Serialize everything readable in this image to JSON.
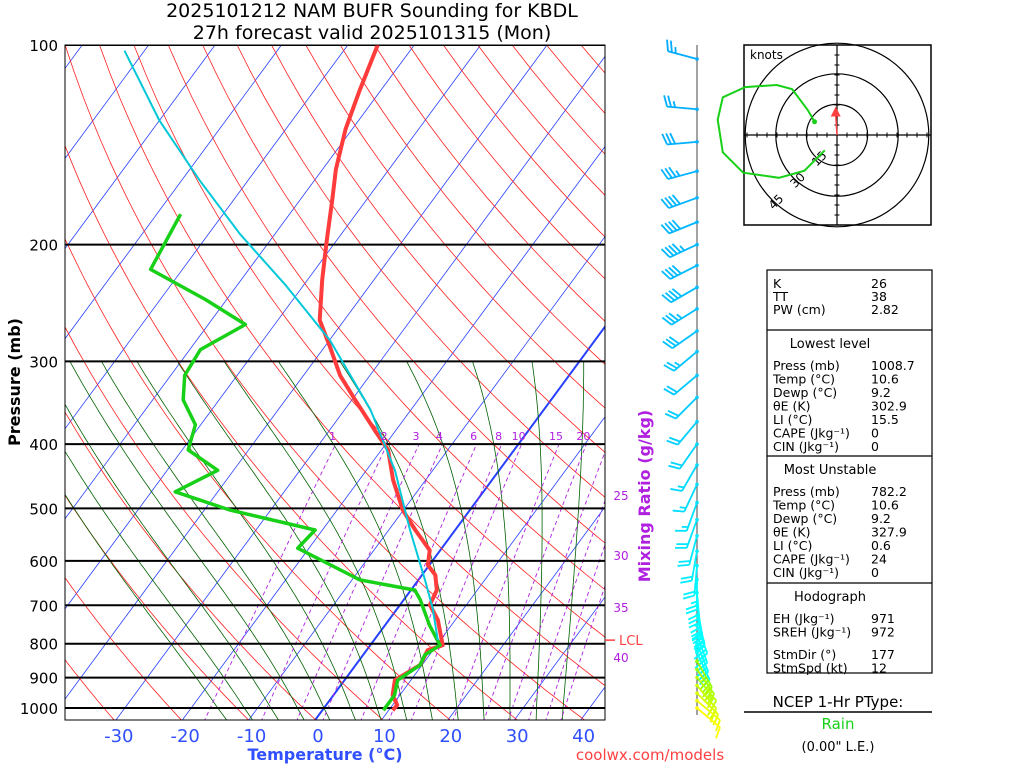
{
  "title": {
    "line1": "2025101212 NAM BUFR Sounding for KBDL",
    "line2": "27h forecast valid 2025101315 (Mon)"
  },
  "footer": {
    "site": "coolwx.com/models"
  },
  "colors": {
    "temperature": "#ff3c3c",
    "dewpoint": "#18d018",
    "parcel": "#00c8d8",
    "isotherm": "#2840ff",
    "dry_adiabat": "#ff2020",
    "moist_adiabat": "#006000",
    "mixing_ratio": "#b020e0",
    "axis_blue": "#3050ff"
  },
  "chart_data": {
    "type": "line",
    "title": "2025101212 NAM BUFR Sounding for KBDL",
    "xlabel": "Temperature (°C)",
    "ylabel": "Pressure (mb)",
    "y2label": "Mixing Ratio (g/kg)",
    "ylim": [
      1050,
      100
    ],
    "xlim_at_1000mb": [
      -40,
      42
    ],
    "pressure_ticks": [
      100,
      200,
      300,
      400,
      500,
      600,
      700,
      800,
      900,
      1000
    ],
    "temperature_ticks": [
      -30,
      -20,
      -10,
      0,
      10,
      20,
      30,
      40
    ],
    "mixing_ratio_lines": [
      1,
      2,
      3,
      4,
      6,
      8,
      10,
      15,
      20,
      25,
      30,
      35,
      40
    ],
    "lcl_label": "LCL",
    "lcl_pressure": 790,
    "series": [
      {
        "name": "Temperature",
        "points": [
          [
            1008,
            10.6
          ],
          [
            990,
            10.7
          ],
          [
            956,
            8.9
          ],
          [
            908,
            7.6
          ],
          [
            861,
            9.7
          ],
          [
            818,
            9.2
          ],
          [
            804,
            10.9
          ],
          [
            737,
            7.4
          ],
          [
            699,
            4.5
          ],
          [
            664,
            3.9
          ],
          [
            630,
            2.0
          ],
          [
            609,
            -0.2
          ],
          [
            578,
            -1.6
          ],
          [
            539,
            -6.0
          ],
          [
            503,
            -10.1
          ],
          [
            453,
            -14.9
          ],
          [
            408,
            -19.0
          ],
          [
            381,
            -23.2
          ],
          [
            343,
            -29.5
          ],
          [
            315,
            -34.5
          ],
          [
            284,
            -39.4
          ],
          [
            260,
            -43.7
          ],
          [
            226,
            -47.8
          ],
          [
            197,
            -51.5
          ],
          [
            171,
            -55.2
          ],
          [
            154,
            -58.0
          ],
          [
            134,
            -61.0
          ],
          [
            117,
            -63.2
          ],
          [
            100,
            -65.5
          ]
        ]
      },
      {
        "name": "Dewpoint",
        "points": [
          [
            1008,
            9.2
          ],
          [
            956,
            9.2
          ],
          [
            908,
            8.0
          ],
          [
            861,
            9.7
          ],
          [
            832,
            9.3
          ],
          [
            804,
            10.5
          ],
          [
            750,
            6.7
          ],
          [
            687,
            2.5
          ],
          [
            664,
            0.6
          ],
          [
            641,
            -8.8
          ],
          [
            630,
            -10.8
          ],
          [
            574,
            -21.7
          ],
          [
            539,
            -21.1
          ],
          [
            503,
            -36.1
          ],
          [
            472,
            -46.4
          ],
          [
            438,
            -42.4
          ],
          [
            408,
            -49.1
          ],
          [
            374,
            -50.8
          ],
          [
            343,
            -55.4
          ],
          [
            315,
            -57.9
          ],
          [
            288,
            -58.4
          ],
          [
            264,
            -54.4
          ],
          [
            242,
            -63.2
          ],
          [
            218,
            -74.8
          ],
          [
            180,
            -76.4
          ]
        ]
      },
      {
        "name": "Parcel",
        "points": [
          [
            790,
            9.6
          ],
          [
            709,
            5.4
          ],
          [
            641,
            1.0
          ],
          [
            539,
            -6.8
          ],
          [
            438,
            -15.7
          ],
          [
            355,
            -26.1
          ],
          [
            279,
            -39.9
          ],
          [
            230,
            -52.8
          ],
          [
            193,
            -65.2
          ],
          [
            160,
            -77.3
          ],
          [
            130,
            -90.0
          ],
          [
            102,
            -103.0
          ]
        ]
      }
    ],
    "winds": [
      {
        "p": 105,
        "dir": 285,
        "spd": 25
      },
      {
        "p": 125,
        "dir": 275,
        "spd": 25
      },
      {
        "p": 140,
        "dir": 265,
        "spd": 30
      },
      {
        "p": 155,
        "dir": 255,
        "spd": 35
      },
      {
        "p": 170,
        "dir": 250,
        "spd": 40
      },
      {
        "p": 185,
        "dir": 248,
        "spd": 40
      },
      {
        "p": 200,
        "dir": 245,
        "spd": 45
      },
      {
        "p": 215,
        "dir": 243,
        "spd": 40
      },
      {
        "p": 232,
        "dir": 240,
        "spd": 40
      },
      {
        "p": 250,
        "dir": 238,
        "spd": 35
      },
      {
        "p": 270,
        "dir": 235,
        "spd": 30
      },
      {
        "p": 290,
        "dir": 230,
        "spd": 25
      },
      {
        "p": 315,
        "dir": 230,
        "spd": 20
      },
      {
        "p": 340,
        "dir": 225,
        "spd": 20
      },
      {
        "p": 370,
        "dir": 220,
        "spd": 20
      },
      {
        "p": 400,
        "dir": 215,
        "spd": 20
      },
      {
        "p": 430,
        "dir": 210,
        "spd": 15
      },
      {
        "p": 460,
        "dir": 205,
        "spd": 15
      },
      {
        "p": 490,
        "dir": 200,
        "spd": 15
      },
      {
        "p": 520,
        "dir": 200,
        "spd": 20
      },
      {
        "p": 550,
        "dir": 195,
        "spd": 20
      },
      {
        "p": 580,
        "dir": 190,
        "spd": 20
      },
      {
        "p": 610,
        "dir": 185,
        "spd": 20
      },
      {
        "p": 640,
        "dir": 180,
        "spd": 25
      },
      {
        "p": 670,
        "dir": 175,
        "spd": 30
      },
      {
        "p": 700,
        "dir": 170,
        "spd": 35
      },
      {
        "p": 725,
        "dir": 165,
        "spd": 40
      },
      {
        "p": 750,
        "dir": 160,
        "spd": 45
      },
      {
        "p": 775,
        "dir": 160,
        "spd": 45
      },
      {
        "p": 800,
        "dir": 158,
        "spd": 40
      },
      {
        "p": 825,
        "dir": 155,
        "spd": 40
      },
      {
        "p": 850,
        "dir": 150,
        "spd": 35
      },
      {
        "p": 875,
        "dir": 145,
        "spd": 30
      },
      {
        "p": 900,
        "dir": 140,
        "spd": 25
      },
      {
        "p": 925,
        "dir": 140,
        "spd": 25
      },
      {
        "p": 950,
        "dir": 135,
        "spd": 20
      },
      {
        "p": 975,
        "dir": 130,
        "spd": 15
      },
      {
        "p": 1000,
        "dir": 130,
        "spd": 10
      }
    ],
    "hodograph": {
      "units_label": "knots",
      "rings": [
        15,
        30,
        45
      ],
      "ring_labels": [
        "15",
        "30",
        "45"
      ],
      "uv": [
        [
          -11,
          6.5
        ],
        [
          -14.5,
          12.5
        ],
        [
          -22,
          22.5
        ],
        [
          -29.5,
          24.5
        ],
        [
          -45,
          23.5
        ],
        [
          -56,
          18.5
        ],
        [
          -58.5,
          7.5
        ],
        [
          -56,
          -8.5
        ],
        [
          -46,
          -18.5
        ],
        [
          -28.5,
          -21
        ],
        [
          -16,
          -17.5
        ],
        [
          -6,
          -7.5
        ]
      ],
      "storm_motion": {
        "dir": 177,
        "spd": 12
      }
    }
  },
  "indices": {
    "top": [
      {
        "label": "K",
        "value": "26"
      },
      {
        "label": "TT",
        "value": "38"
      },
      {
        "label": "PW (cm)",
        "value": "2.82"
      }
    ],
    "lowest": {
      "heading": "Lowest level",
      "rows": [
        {
          "label": "Press (mb)",
          "value": "1008.7"
        },
        {
          "label": "Temp (°C)",
          "value": "10.6"
        },
        {
          "label": "Dewp (°C)",
          "value": "9.2"
        },
        {
          "label": "θE (K)",
          "value": "302.9"
        },
        {
          "label": "LI (°C)",
          "value": "15.5"
        },
        {
          "label": "CAPE (Jkg⁻¹)",
          "value": "0"
        },
        {
          "label": "CIN (Jkg⁻¹)",
          "value": "0"
        }
      ]
    },
    "unstable": {
      "heading": "Most Unstable",
      "rows": [
        {
          "label": "Press (mb)",
          "value": "782.2"
        },
        {
          "label": "Temp (°C)",
          "value": "10.6"
        },
        {
          "label": "Dewp (°C)",
          "value": "9.2"
        },
        {
          "label": "θE (K)",
          "value": "327.9"
        },
        {
          "label": "LI (°C)",
          "value": "0.6"
        },
        {
          "label": "CAPE (Jkg⁻¹)",
          "value": "24"
        },
        {
          "label": "CIN (Jkg⁻¹)",
          "value": "0"
        }
      ]
    },
    "hodo": {
      "heading": "Hodograph",
      "rows": [
        {
          "label": "EH (Jkg⁻¹)",
          "value": "971"
        },
        {
          "label": "SREH (Jkg⁻¹)",
          "value": "972"
        },
        {
          "label": "StmDir (°)",
          "value": "177"
        },
        {
          "label": "StmSpd (kt)",
          "value": "12"
        }
      ]
    }
  },
  "ptype": {
    "heading": "NCEP 1-Hr PType:",
    "value": "Rain",
    "amount": "(0.00\" L.E.)"
  }
}
